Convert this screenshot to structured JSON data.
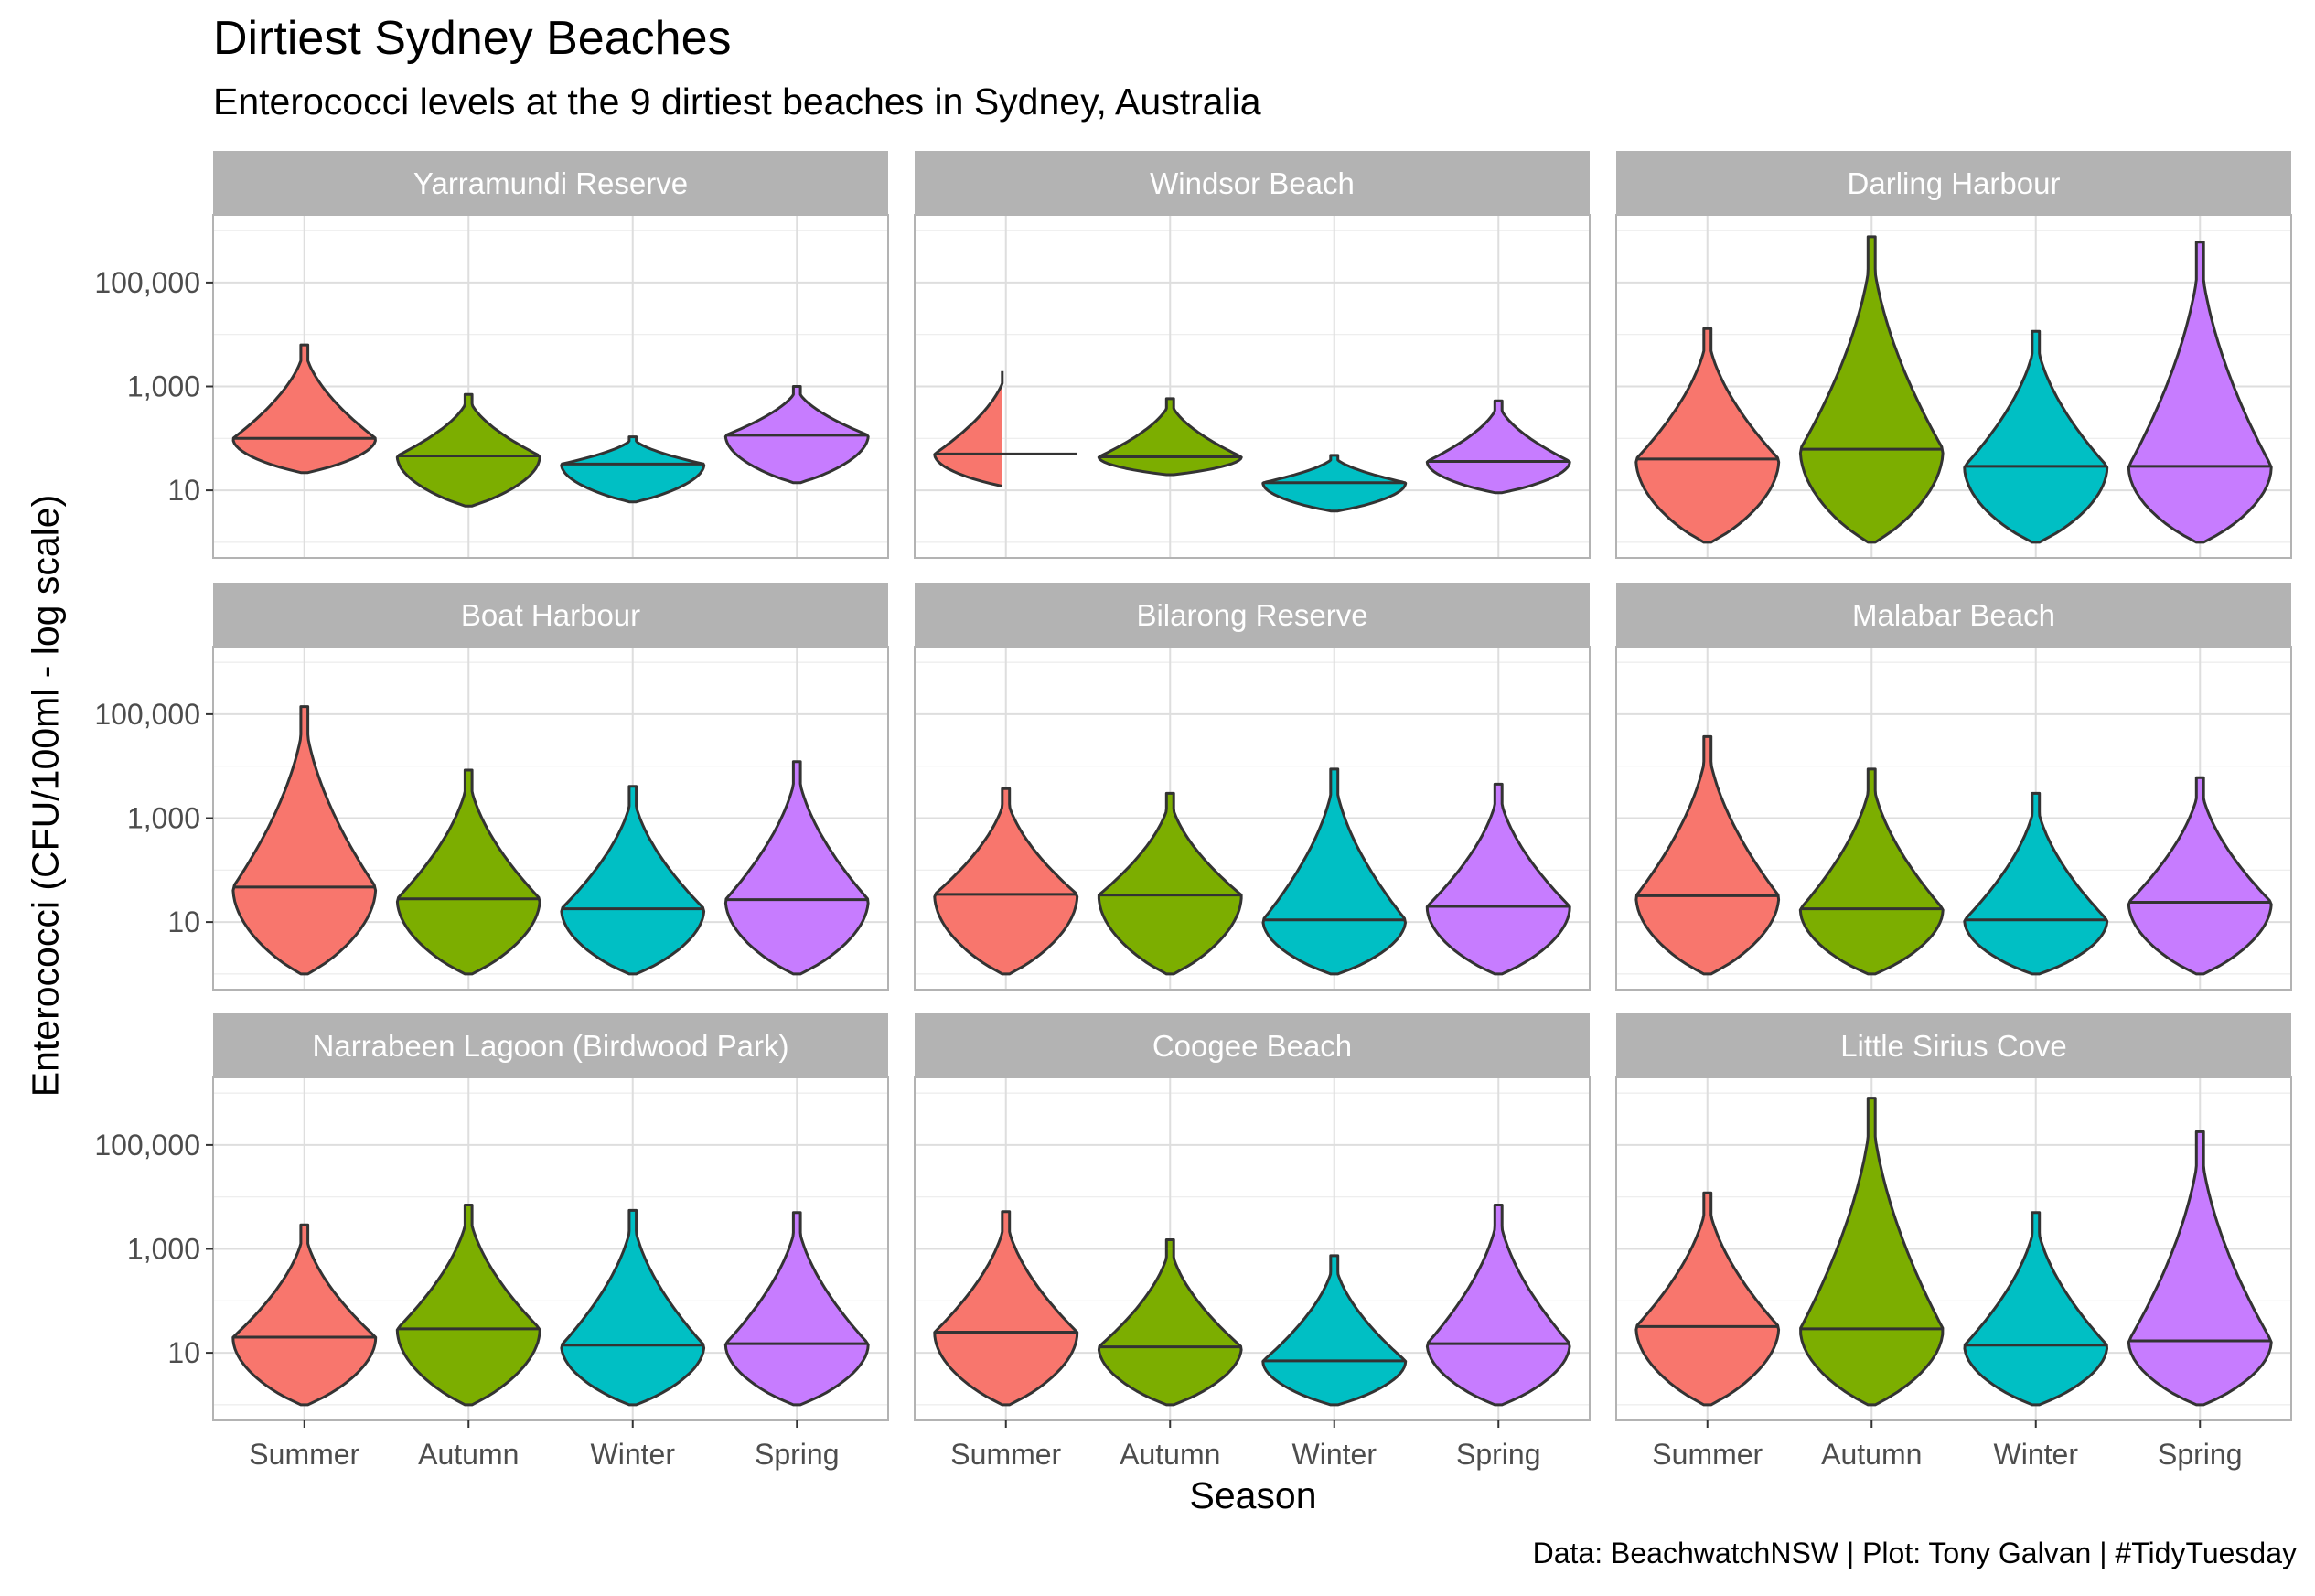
{
  "title": "Dirtiest Sydney Beaches",
  "subtitle": "Enterococci levels at the 9 dirtiest beaches in Sydney, Australia",
  "caption": "Data: BeachwatchNSW | Plot: Tony Galvan | #TidyTuesday",
  "chart_data": {
    "type": "violin",
    "title": "Dirtiest Sydney Beaches",
    "subtitle": "Enterococci levels at the 9 dirtiest beaches in Sydney, Australia",
    "xlabel": "Season",
    "ylabel": "Enterococci (CFU/100ml - log scale)",
    "y_scale": "log10",
    "y_ticks": [
      10,
      1000,
      100000
    ],
    "y_tick_labels": [
      "10",
      "1,000",
      "100,000"
    ],
    "ylim": [
      0.5,
      2000000
    ],
    "categories": [
      "Summer",
      "Autumn",
      "Winter",
      "Spring"
    ],
    "series_colors": {
      "Summer": "#F8766D",
      "Autumn": "#7CAE00",
      "Winter": "#00BFC4",
      "Spring": "#C77CFF"
    },
    "facets": [
      {
        "name": "Yarramundi Reserve",
        "violins": [
          {
            "season": "Summer",
            "min": 22,
            "max": 6300,
            "median": 100
          },
          {
            "season": "Autumn",
            "min": 5,
            "max": 700,
            "median": 46
          },
          {
            "season": "Winter",
            "min": 6,
            "max": 107,
            "median": 32
          },
          {
            "season": "Spring",
            "min": 14,
            "max": 1000,
            "median": 115
          }
        ]
      },
      {
        "name": "Windsor Beach",
        "violins": [
          {
            "season": "Summer",
            "min": 12,
            "max": 2200,
            "median": 50
          },
          {
            "season": "Autumn",
            "min": 20,
            "max": 580,
            "median": 44
          },
          {
            "season": "Winter",
            "min": 4,
            "max": 47,
            "median": 14
          },
          {
            "season": "Spring",
            "min": 9,
            "max": 530,
            "median": 36
          }
        ]
      },
      {
        "name": "Darling Harbour",
        "violins": [
          {
            "season": "Summer",
            "min": 1,
            "max": 13000,
            "median": 40
          },
          {
            "season": "Autumn",
            "min": 1,
            "max": 760000,
            "median": 62
          },
          {
            "season": "Winter",
            "min": 1,
            "max": 11500,
            "median": 29
          },
          {
            "season": "Spring",
            "min": 1,
            "max": 600000,
            "median": 29
          }
        ]
      },
      {
        "name": "Boat Harbour",
        "violins": [
          {
            "season": "Summer",
            "min": 1,
            "max": 140000,
            "median": 47
          },
          {
            "season": "Autumn",
            "min": 1,
            "max": 8400,
            "median": 28
          },
          {
            "season": "Winter",
            "min": 1,
            "max": 4100,
            "median": 18
          },
          {
            "season": "Spring",
            "min": 1,
            "max": 12200,
            "median": 27
          }
        ]
      },
      {
        "name": "Bilarong Reserve",
        "violins": [
          {
            "season": "Summer",
            "min": 1,
            "max": 3700,
            "median": 34
          },
          {
            "season": "Autumn",
            "min": 1,
            "max": 3000,
            "median": 33
          },
          {
            "season": "Winter",
            "min": 1,
            "max": 8800,
            "median": 11
          },
          {
            "season": "Spring",
            "min": 1,
            "max": 4500,
            "median": 20
          }
        ]
      },
      {
        "name": "Malabar Beach",
        "violins": [
          {
            "season": "Summer",
            "min": 1,
            "max": 37000,
            "median": 32
          },
          {
            "season": "Autumn",
            "min": 1,
            "max": 8800,
            "median": 18
          },
          {
            "season": "Winter",
            "min": 1,
            "max": 3000,
            "median": 11
          },
          {
            "season": "Spring",
            "min": 1,
            "max": 6000,
            "median": 24
          }
        ]
      },
      {
        "name": "Narrabeen Lagoon (Birdwood Park)",
        "violins": [
          {
            "season": "Summer",
            "min": 1,
            "max": 2900,
            "median": 20
          },
          {
            "season": "Autumn",
            "min": 1,
            "max": 7000,
            "median": 29
          },
          {
            "season": "Winter",
            "min": 1,
            "max": 5500,
            "median": 14
          },
          {
            "season": "Spring",
            "min": 1,
            "max": 5000,
            "median": 15
          }
        ]
      },
      {
        "name": "Coogee Beach",
        "violins": [
          {
            "season": "Summer",
            "min": 1,
            "max": 5200,
            "median": 25
          },
          {
            "season": "Autumn",
            "min": 1,
            "max": 1500,
            "median": 13
          },
          {
            "season": "Winter",
            "min": 1,
            "max": 740,
            "median": 7
          },
          {
            "season": "Spring",
            "min": 1,
            "max": 7000,
            "median": 15
          }
        ]
      },
      {
        "name": "Little Sirius Cove",
        "violins": [
          {
            "season": "Summer",
            "min": 1,
            "max": 12000,
            "median": 32
          },
          {
            "season": "Autumn",
            "min": 1,
            "max": 800000,
            "median": 29
          },
          {
            "season": "Winter",
            "min": 1,
            "max": 5000,
            "median": 14
          },
          {
            "season": "Spring",
            "min": 1,
            "max": 180000,
            "median": 17
          }
        ]
      }
    ],
    "grid": true,
    "legend": "none"
  }
}
